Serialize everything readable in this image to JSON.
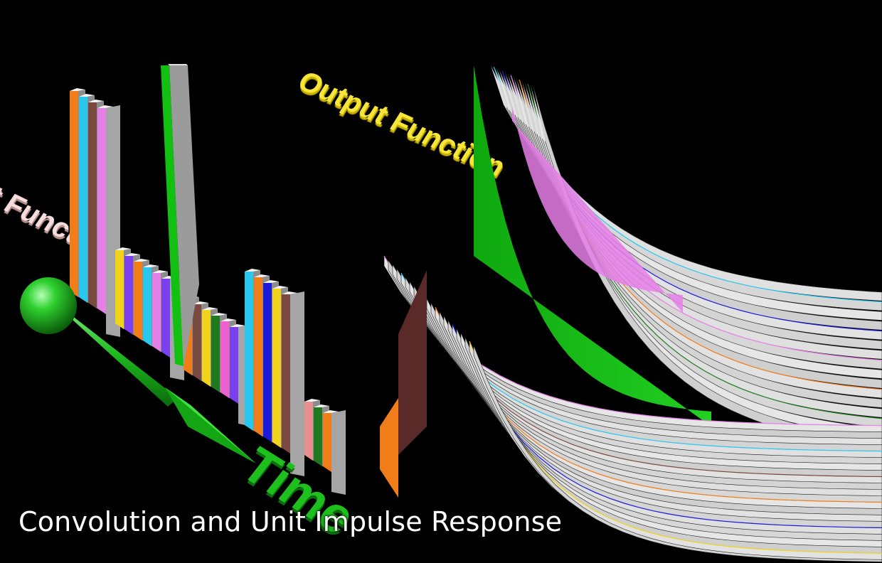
{
  "caption": "Convolution and Unit Impulse Response",
  "labels": {
    "input": "t Functio",
    "output": "Output Function",
    "time": "Time"
  },
  "colors": {
    "background": "#000000",
    "time_axis": "#19c319",
    "output_label": "#f0e020",
    "input_label": "#f2d6d6",
    "impulse_bar": "#12c012",
    "caption": "#ffffff"
  },
  "input_bar_palette": [
    "#f07d18",
    "#28c8ee",
    "#7a4a40",
    "#e67fe8",
    "#9a9a9a",
    "#f0d31a",
    "#7b3ff0",
    "#1a1ad8",
    "#1f7a1f",
    "#ee5fd0",
    "#e88f8f"
  ],
  "icons": [
    "time-axis-arrow-icon",
    "time-axis-sphere-icon"
  ]
}
